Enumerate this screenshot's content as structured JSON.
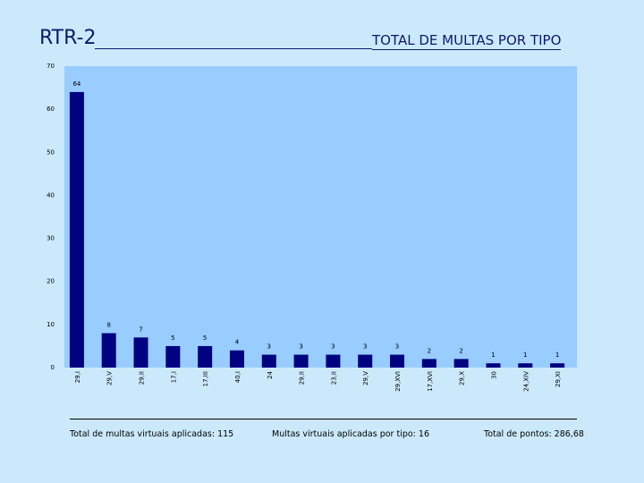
{
  "header": {
    "code": "RTR-2",
    "title": "TOTAL DE MULTAS POR TIPO"
  },
  "colors": {
    "plot_bg": "#99ccff",
    "bar": "#000080",
    "page_bg": "#cce9fb"
  },
  "chart_data": {
    "type": "bar",
    "categories": [
      "29,I",
      "29,V",
      "29,II",
      "17,I",
      "17,III",
      "40,I",
      "24",
      "29,II",
      "23,II",
      "29,V",
      "29,XVI",
      "17,XVI",
      "29,X",
      "30",
      "24,XIV",
      "29,XI"
    ],
    "values": [
      64,
      8,
      7,
      5,
      5,
      4,
      3,
      3,
      3,
      3,
      3,
      2,
      2,
      1,
      1,
      1
    ],
    "value_labels": [
      "64",
      "8",
      "7",
      "5",
      "5",
      "4",
      "3",
      "3",
      "3",
      "3",
      "3",
      "2",
      "2",
      "1",
      "1",
      "1"
    ],
    "title": "TOTAL DE MULTAS POR TIPO",
    "xlabel": "",
    "ylabel": "",
    "ylim": [
      0,
      70
    ],
    "yticks": [
      "0",
      "10",
      "20",
      "30",
      "40",
      "50",
      "60",
      "70"
    ],
    "grid": false,
    "legend": "none"
  },
  "footer": {
    "total_label": "Total de multas virtuais aplicadas: 115",
    "type_label": "Multas virtuais aplicadas por tipo: 16",
    "points_label": "Total de pontos: 286,68"
  }
}
